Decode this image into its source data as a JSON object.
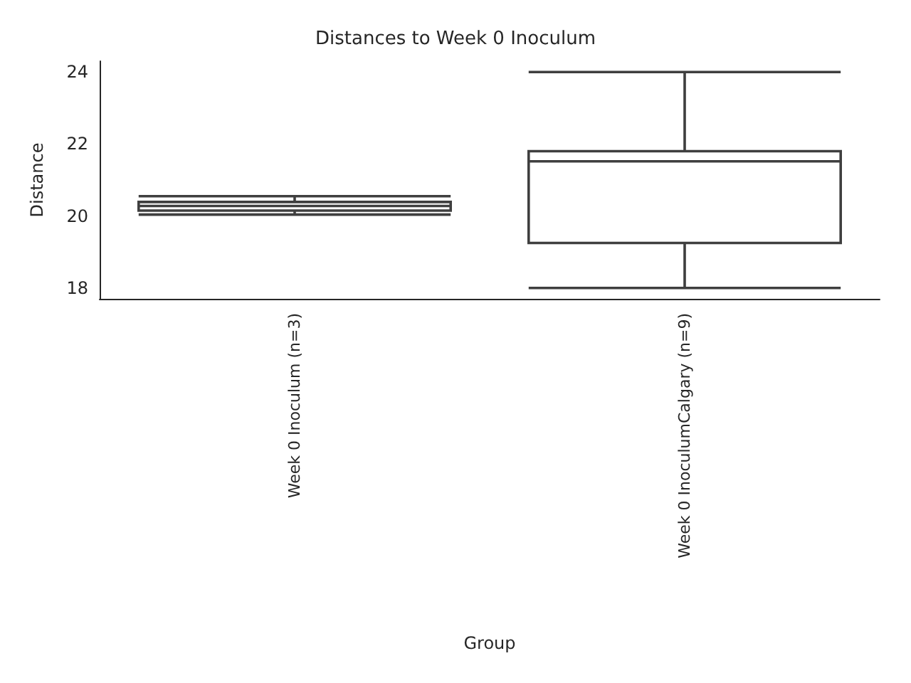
{
  "chart_data": {
    "type": "box",
    "title": "Distances to Week 0 Inoculum",
    "xlabel": "Group",
    "ylabel": "Distance",
    "categories": [
      "Week 0 Inoculum (n=3)",
      "Week 0 InoculumCalgary (n=9)"
    ],
    "boxes": [
      {
        "low": 20.04,
        "q1": 20.15,
        "median": 20.28,
        "q3": 20.39,
        "high": 20.55
      },
      {
        "low": 18.0,
        "q1": 19.25,
        "median": 21.52,
        "q3": 21.8,
        "high": 24.0
      }
    ],
    "color": "#ffffff",
    "ylim": [
      17.7,
      24.3
    ],
    "yticks": [
      18,
      20,
      22,
      24
    ],
    "grid": false,
    "legend": false
  }
}
